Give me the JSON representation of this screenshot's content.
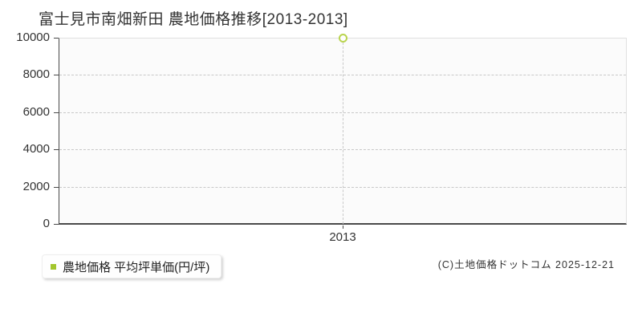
{
  "title": "富士見市南畑新田 農地価格推移[2013-2013]",
  "chart_data": {
    "type": "scatter",
    "title": "富士見市南畑新田 農地価格推移[2013-2013]",
    "categories": [
      "2013"
    ],
    "series": [
      {
        "name": "農地価格 平均坪単価(円/坪)",
        "values": [
          10000
        ],
        "marker": "open-circle",
        "color": "#b9d44e"
      }
    ],
    "ylim": [
      0,
      10000
    ],
    "yticks": [
      0,
      2000,
      4000,
      6000,
      8000,
      10000
    ],
    "xlabel": "",
    "ylabel": "",
    "grid": "dashed",
    "legend_position": "bottom-left"
  },
  "legend": {
    "label": "農地価格 平均坪単価(円/坪)",
    "marker_color": "#a3c62e"
  },
  "footer": {
    "copyright": "(C)土地価格ドットコム 2025-12-21"
  },
  "colors": {
    "axis": "#4a4a4a",
    "gridline": "#c8c8c8",
    "plot_border": "#e0e0e0",
    "plot_background": "#fbfbfb",
    "text": "#333333",
    "point_stroke": "#b9d44e",
    "legend_marker": "#a3c62e"
  }
}
